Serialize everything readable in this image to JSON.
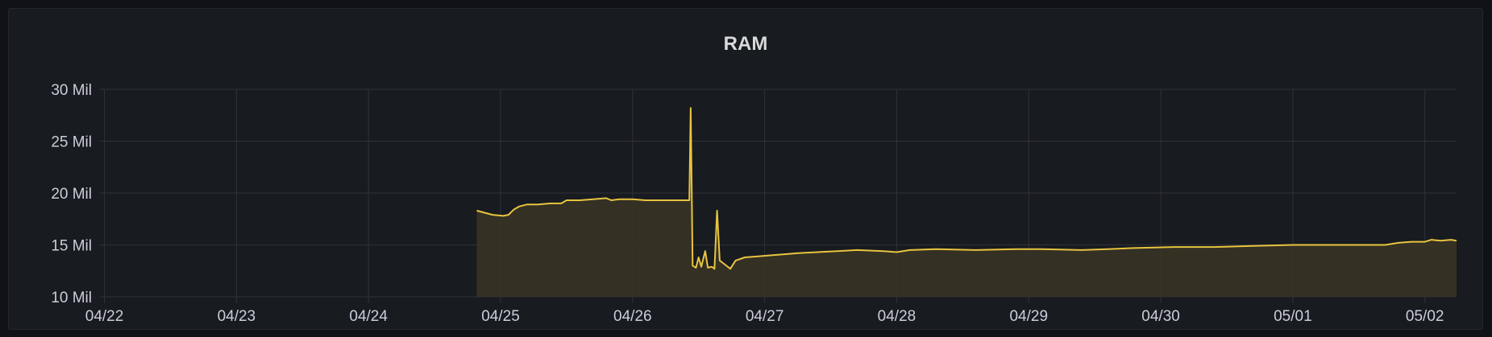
{
  "panel": {
    "title": "RAM"
  },
  "chart_data": {
    "type": "area",
    "title": "RAM",
    "xlabel": "",
    "ylabel": "",
    "x_tick_labels": [
      "04/22",
      "04/23",
      "04/24",
      "04/25",
      "04/26",
      "04/27",
      "04/28",
      "04/29",
      "04/30",
      "05/01",
      "05/02"
    ],
    "y_ticks": [
      {
        "value": 10,
        "label": "10 Mil"
      },
      {
        "value": 15,
        "label": "15 Mil"
      },
      {
        "value": 20,
        "label": "20 Mil"
      },
      {
        "value": 25,
        "label": "25 Mil"
      },
      {
        "value": 30,
        "label": "30 Mil"
      }
    ],
    "xlim": [
      -0.04,
      10.24
    ],
    "ylim": [
      10,
      30
    ],
    "grid": true,
    "legend": "none",
    "colors": {
      "line": "#e8c440",
      "fill": "#3a3424",
      "grid": "#2f3138"
    },
    "series": [
      {
        "x_unit": "days since 04/22",
        "points": [
          [
            2.82,
            18.3
          ],
          [
            2.88,
            18.1
          ],
          [
            2.94,
            17.9
          ],
          [
            3.02,
            17.8
          ],
          [
            3.06,
            17.9
          ],
          [
            3.1,
            18.4
          ],
          [
            3.14,
            18.7
          ],
          [
            3.2,
            18.9
          ],
          [
            3.28,
            18.9
          ],
          [
            3.38,
            19.0
          ],
          [
            3.46,
            19.0
          ],
          [
            3.5,
            19.3
          ],
          [
            3.6,
            19.3
          ],
          [
            3.7,
            19.4
          ],
          [
            3.8,
            19.5
          ],
          [
            3.84,
            19.3
          ],
          [
            3.9,
            19.4
          ],
          [
            4.0,
            19.4
          ],
          [
            4.1,
            19.3
          ],
          [
            4.2,
            19.3
          ],
          [
            4.3,
            19.3
          ],
          [
            4.4,
            19.3
          ],
          [
            4.43,
            19.3
          ],
          [
            4.44,
            28.2
          ],
          [
            4.455,
            13.0
          ],
          [
            4.48,
            12.8
          ],
          [
            4.5,
            13.8
          ],
          [
            4.52,
            12.9
          ],
          [
            4.55,
            14.4
          ],
          [
            4.57,
            12.8
          ],
          [
            4.6,
            12.9
          ],
          [
            4.62,
            12.7
          ],
          [
            4.64,
            18.3
          ],
          [
            4.66,
            13.5
          ],
          [
            4.7,
            13.1
          ],
          [
            4.74,
            12.7
          ],
          [
            4.78,
            13.5
          ],
          [
            4.85,
            13.8
          ],
          [
            4.95,
            13.9
          ],
          [
            5.05,
            14.0
          ],
          [
            5.15,
            14.1
          ],
          [
            5.25,
            14.2
          ],
          [
            5.4,
            14.3
          ],
          [
            5.55,
            14.4
          ],
          [
            5.7,
            14.5
          ],
          [
            5.9,
            14.4
          ],
          [
            6.0,
            14.3
          ],
          [
            6.1,
            14.5
          ],
          [
            6.3,
            14.6
          ],
          [
            6.6,
            14.5
          ],
          [
            6.9,
            14.6
          ],
          [
            7.1,
            14.6
          ],
          [
            7.4,
            14.5
          ],
          [
            7.6,
            14.6
          ],
          [
            7.8,
            14.7
          ],
          [
            8.1,
            14.8
          ],
          [
            8.4,
            14.8
          ],
          [
            8.7,
            14.9
          ],
          [
            9.0,
            15.0
          ],
          [
            9.3,
            15.0
          ],
          [
            9.55,
            15.0
          ],
          [
            9.7,
            15.0
          ],
          [
            9.8,
            15.2
          ],
          [
            9.9,
            15.3
          ],
          [
            10.0,
            15.3
          ],
          [
            10.05,
            15.5
          ],
          [
            10.12,
            15.4
          ],
          [
            10.2,
            15.5
          ],
          [
            10.24,
            15.4
          ]
        ]
      }
    ]
  }
}
